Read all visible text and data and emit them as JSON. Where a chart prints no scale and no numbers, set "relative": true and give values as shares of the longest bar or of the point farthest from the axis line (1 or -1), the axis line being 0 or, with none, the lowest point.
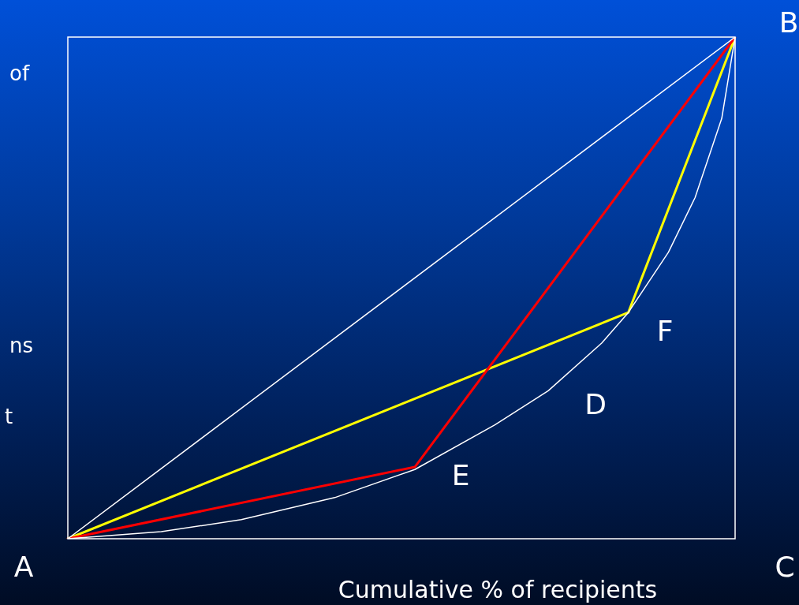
{
  "chart_data": {
    "type": "line",
    "relative": true,
    "xlabel": "Cumulative % of recipients",
    "categories": [
      null,
      null,
      null,
      null,
      null,
      null,
      null,
      null,
      null,
      null,
      null,
      null,
      null,
      null,
      null,
      null,
      null,
      null,
      null,
      null,
      null,
      null,
      null,
      null,
      null,
      null,
      null,
      null,
      null,
      null,
      null,
      null,
      null,
      null,
      null,
      null,
      null,
      null,
      null,
      null,
      null,
      null,
      null,
      null,
      null,
      null,
      null,
      null,
      null,
      null,
      null
    ],
    "series": [
      {
        "color": "#ffffff",
        "values": [
          0,
          null,
          null,
          null,
          null,
          null,
          null,
          null,
          null,
          null,
          null,
          null,
          null,
          null,
          null,
          null,
          null,
          null,
          null,
          null,
          null,
          null,
          null,
          null,
          null,
          null,
          null,
          null,
          null,
          null,
          null,
          null,
          null,
          null,
          null,
          null,
          null,
          null,
          null,
          null,
          null,
          null,
          null,
          null,
          null,
          null,
          null,
          null,
          null,
          null,
          1
        ]
      },
      {
        "color": "#ffffff",
        "values": [
          0,
          null,
          null,
          null,
          null,
          null,
          null,
          0.014,
          null,
          null,
          null,
          null,
          null,
          0.038,
          null,
          null,
          null,
          null,
          null,
          null,
          0.082,
          null,
          null,
          null,
          null,
          null,
          0.138,
          null,
          null,
          null,
          null,
          null,
          0.227,
          null,
          null,
          null,
          0.295,
          null,
          null,
          null,
          0.39,
          null,
          0.451,
          null,
          null,
          0.571,
          null,
          0.68,
          null,
          0.838,
          1
        ]
      },
      {
        "color": "#ff0000",
        "values": [
          0,
          null,
          null,
          null,
          null,
          null,
          null,
          null,
          null,
          null,
          null,
          null,
          null,
          null,
          null,
          null,
          null,
          null,
          null,
          null,
          null,
          null,
          null,
          null,
          null,
          null,
          0.143,
          null,
          null,
          null,
          null,
          null,
          null,
          null,
          null,
          null,
          null,
          null,
          null,
          null,
          null,
          null,
          null,
          null,
          null,
          null,
          null,
          null,
          null,
          null,
          1
        ]
      },
      {
        "color": "#ffff00",
        "values": [
          0,
          null,
          null,
          null,
          null,
          null,
          null,
          null,
          null,
          null,
          null,
          null,
          null,
          null,
          null,
          null,
          null,
          null,
          null,
          null,
          null,
          null,
          null,
          null,
          null,
          null,
          null,
          null,
          null,
          null,
          null,
          null,
          null,
          null,
          null,
          null,
          null,
          null,
          null,
          null,
          null,
          null,
          0.451,
          null,
          null,
          null,
          null,
          null,
          null,
          null,
          1
        ]
      }
    ],
    "annotations": [
      "A",
      "B",
      "C",
      "D",
      "E",
      "F",
      "of",
      "ns",
      "t"
    ]
  }
}
